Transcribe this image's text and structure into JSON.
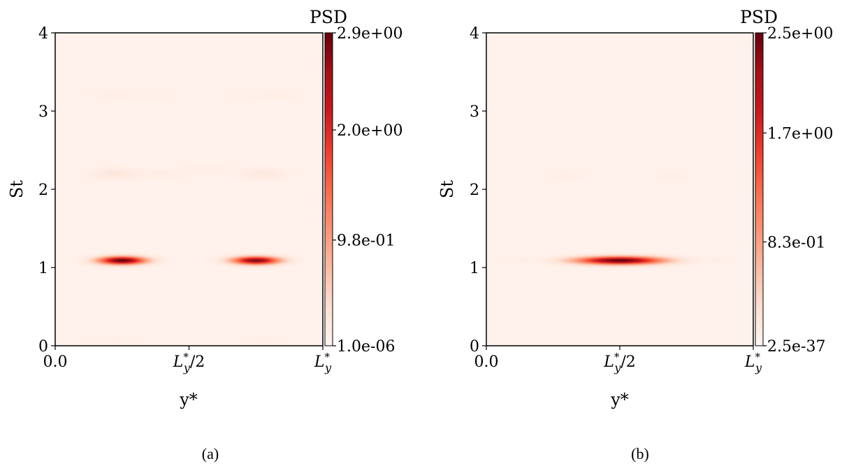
{
  "chart_data": [
    {
      "type": "heatmap",
      "panel_label": "(a)",
      "xlabel": "y*",
      "ylabel": "St",
      "x_tick_labels": [
        "0.0",
        "L*y/2",
        "L*y"
      ],
      "x_tick_values": [
        0,
        0.5,
        1
      ],
      "x_unit_note": "y* as a fraction of L*y (0 to 1)",
      "ylim": [
        0,
        4
      ],
      "y_ticks": [
        0,
        1,
        2,
        3,
        4
      ],
      "colorbar": {
        "title": "PSD",
        "min": 1e-06,
        "max": 2.9,
        "tick_labels": [
          "1.0e-06",
          "9.8e-01",
          "2.0e+00",
          "2.9e+00"
        ],
        "tick_values": [
          1e-06,
          0.98,
          2.0,
          2.9
        ],
        "colormap": "Reds"
      },
      "features": [
        {
          "x": 0.25,
          "st": 1.09,
          "amplitude": 2.9,
          "x_width": 0.06,
          "st_width": 0.035
        },
        {
          "x": 0.75,
          "st": 1.09,
          "amplitude": 2.7,
          "x_width": 0.06,
          "st_width": 0.035
        },
        {
          "x": 0.22,
          "st": 2.2,
          "amplitude": 0.18,
          "x_width": 0.06,
          "st_width": 0.05
        },
        {
          "x": 0.4,
          "st": 2.2,
          "amplitude": 0.08,
          "x_width": 0.07,
          "st_width": 0.05
        },
        {
          "x": 0.57,
          "st": 2.25,
          "amplitude": 0.07,
          "x_width": 0.06,
          "st_width": 0.05
        },
        {
          "x": 0.78,
          "st": 2.2,
          "amplitude": 0.16,
          "x_width": 0.06,
          "st_width": 0.05
        },
        {
          "x": 0.22,
          "st": 3.22,
          "amplitude": 0.08,
          "x_width": 0.05,
          "st_width": 0.05
        },
        {
          "x": 0.38,
          "st": 3.22,
          "amplitude": 0.05,
          "x_width": 0.05,
          "st_width": 0.05
        },
        {
          "x": 0.72,
          "st": 3.22,
          "amplitude": 0.05,
          "x_width": 0.05,
          "st_width": 0.05
        },
        {
          "x": 0.84,
          "st": 3.22,
          "amplitude": 0.07,
          "x_width": 0.05,
          "st_width": 0.05
        },
        {
          "x": 0.22,
          "st": 0.08,
          "amplitude": 0.06,
          "x_width": 0.06,
          "st_width": 0.04
        },
        {
          "x": 0.78,
          "st": 0.08,
          "amplitude": 0.06,
          "x_width": 0.06,
          "st_width": 0.04
        }
      ],
      "background": 0.05
    },
    {
      "type": "heatmap",
      "panel_label": "(b)",
      "xlabel": "y*",
      "ylabel": "St",
      "x_tick_labels": [
        "0.0",
        "L*y/2",
        "L*y"
      ],
      "x_tick_values": [
        0,
        0.5,
        1
      ],
      "x_unit_note": "y* as a fraction of L*y (0 to 1)",
      "ylim": [
        0,
        4
      ],
      "y_ticks": [
        0,
        1,
        2,
        3,
        4
      ],
      "colorbar": {
        "title": "PSD",
        "min": 2.5e-37,
        "max": 2.5,
        "tick_labels": [
          "2.5e-37",
          "8.3e-01",
          "1.7e+00",
          "2.5e+00"
        ],
        "tick_values": [
          2.5e-37,
          0.83,
          1.7,
          2.5
        ],
        "colormap": "Reds"
      },
      "features": [
        {
          "x": 0.5,
          "st": 1.09,
          "amplitude": 2.5,
          "x_width": 0.11,
          "st_width": 0.035
        },
        {
          "x": 0.3,
          "st": 2.18,
          "amplitude": 0.06,
          "x_width": 0.05,
          "st_width": 0.05
        },
        {
          "x": 0.7,
          "st": 2.18,
          "amplitude": 0.05,
          "x_width": 0.05,
          "st_width": 0.05
        },
        {
          "x": 0.12,
          "st": 1.09,
          "amplitude": 0.05,
          "x_width": 0.04,
          "st_width": 0.03
        },
        {
          "x": 0.88,
          "st": 1.09,
          "amplitude": 0.05,
          "x_width": 0.04,
          "st_width": 0.03
        }
      ],
      "background": 0.04
    }
  ]
}
